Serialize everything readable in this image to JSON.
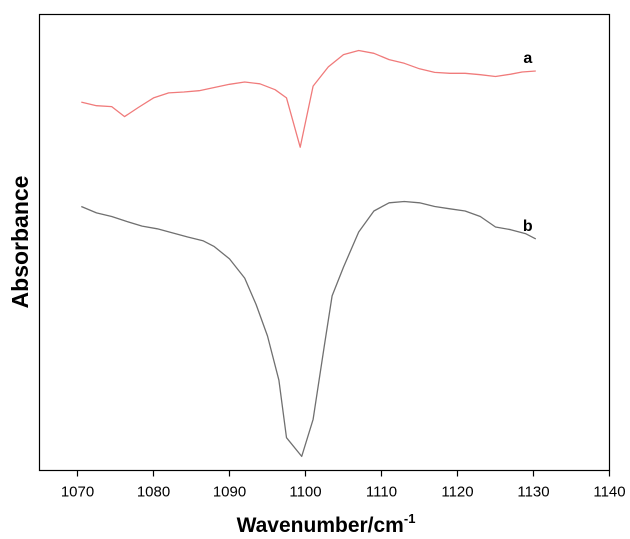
{
  "chart_data": {
    "type": "line",
    "xlabel": "Wavenumber/cm",
    "xlabel_superscript": "-1",
    "ylabel": "Absorbance",
    "xlim": [
      1065,
      1140
    ],
    "ylim": [
      0,
      100
    ],
    "xticks": [
      1070,
      1080,
      1090,
      1100,
      1110,
      1120,
      1130,
      1140
    ],
    "y_ticks_labeled": false,
    "grid": false,
    "legend": "none",
    "series": [
      {
        "name": "a",
        "color": "#f07b7b",
        "x": [
          1070.5,
          1072.5,
          1074.5,
          1076.2,
          1078,
          1080,
          1082,
          1084,
          1086,
          1088,
          1090,
          1092,
          1094,
          1096,
          1097.5,
          1099.3,
          1101,
          1103,
          1105,
          1107,
          1109,
          1111,
          1113,
          1115,
          1117,
          1119,
          1121,
          1123,
          1125,
          1127,
          1128.5,
          1130.3
        ],
        "y": [
          80.8,
          80,
          79.8,
          77.6,
          79.6,
          81.7,
          82.8,
          83,
          83.3,
          84,
          84.7,
          85.2,
          84.8,
          83.5,
          81.7,
          70.9,
          84.3,
          88.5,
          91.2,
          92.1,
          91.5,
          90.1,
          89.3,
          88.1,
          87.3,
          87.1,
          87.1,
          86.8,
          86.4,
          86.9,
          87.4,
          87.6
        ]
      },
      {
        "name": "b",
        "color": "#707070",
        "x": [
          1070.5,
          1072.5,
          1074.5,
          1076.5,
          1078.5,
          1080.5,
          1082.5,
          1084.5,
          1086.5,
          1088,
          1090,
          1092,
          1093.5,
          1095,
          1096.5,
          1097.5,
          1099.5,
          1101,
          1102.5,
          1103.5,
          1105,
          1107,
          1109,
          1111,
          1113,
          1115,
          1117,
          1119,
          1121,
          1123,
          1125,
          1127,
          1129,
          1130.3
        ],
        "y": [
          57.9,
          56.5,
          55.7,
          54.6,
          53.6,
          53,
          52.1,
          51.2,
          50.4,
          49.1,
          46.4,
          42.2,
          36.4,
          29.5,
          19.8,
          7.2,
          3.1,
          11.2,
          27.6,
          38.3,
          44.6,
          52.3,
          56.9,
          58.7,
          59,
          58.7,
          57.9,
          57.4,
          56.9,
          55.7,
          53.4,
          52.8,
          51.9,
          50.8
        ]
      }
    ]
  }
}
